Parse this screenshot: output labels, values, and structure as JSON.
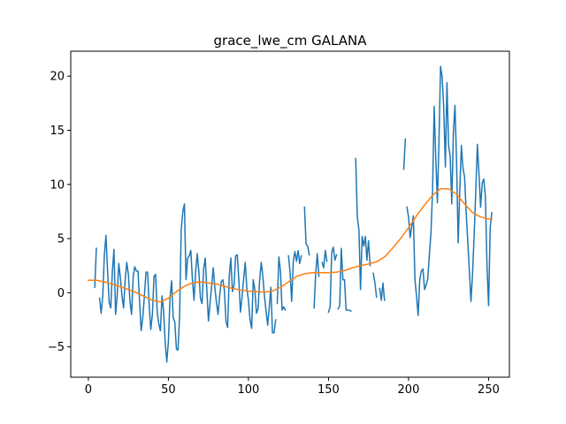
{
  "chart_data": {
    "type": "line",
    "title": "grace_lwe_cm GALANA",
    "xlabel": "",
    "ylabel": "",
    "xlim": [
      -11,
      263
    ],
    "ylim": [
      -7.8,
      22.3
    ],
    "xticks": [
      0,
      50,
      100,
      150,
      200,
      250
    ],
    "yticks": [
      -5,
      0,
      5,
      10,
      15,
      20
    ],
    "grid": false,
    "series": [
      {
        "color": "#1f77b4",
        "segments": [
          [
            [
              4,
              0.5
            ],
            [
              5,
              4.1
            ]
          ],
          [
            [
              7,
              -0.5
            ],
            [
              8,
              -1.9
            ],
            [
              9,
              -0.3
            ],
            [
              10,
              3.5
            ],
            [
              11,
              5.3
            ],
            [
              12,
              2.0
            ],
            [
              13,
              -0.9
            ],
            [
              14,
              -1.4
            ],
            [
              15,
              2.0
            ],
            [
              16,
              4.0
            ],
            [
              17,
              -2.0
            ],
            [
              18,
              -0.3
            ],
            [
              19,
              2.7
            ],
            [
              20,
              1.4
            ],
            [
              21,
              -0.3
            ],
            [
              22,
              -1.4
            ],
            [
              23,
              1.2
            ],
            [
              24,
              2.8
            ],
            [
              25,
              1.7
            ],
            [
              26,
              -0.8
            ],
            [
              27,
              -2.0
            ],
            [
              28,
              1.5
            ],
            [
              29,
              2.4
            ],
            [
              30,
              2.0
            ],
            [
              31,
              2.0
            ],
            [
              32,
              -0.8
            ],
            [
              33,
              -3.5
            ],
            [
              34,
              -2.3
            ],
            [
              35,
              -0.3
            ],
            [
              36,
              1.9
            ],
            [
              37,
              1.9
            ],
            [
              38,
              -1.2
            ],
            [
              39,
              -3.4
            ],
            [
              40,
              -2.0
            ],
            [
              41,
              1.5
            ],
            [
              42,
              1.7
            ],
            [
              43,
              -1.8
            ],
            [
              44,
              -2.9
            ],
            [
              45,
              -3.5
            ],
            [
              46,
              -0.3
            ],
            [
              47,
              -1.7
            ],
            [
              48,
              -4.6
            ],
            [
              49,
              -6.4
            ],
            [
              50,
              -4.5
            ],
            [
              51,
              -0.5
            ],
            [
              52,
              1.1
            ],
            [
              53,
              -2.3
            ],
            [
              54,
              -2.7
            ],
            [
              55,
              -5.2
            ],
            [
              56,
              -5.3
            ],
            [
              57,
              -2.1
            ],
            [
              58,
              5.8
            ],
            [
              59,
              7.5
            ],
            [
              60,
              8.2
            ],
            [
              61,
              1.2
            ],
            [
              62,
              3.2
            ],
            [
              63,
              3.4
            ],
            [
              64,
              3.9
            ],
            [
              65,
              1.2
            ],
            [
              66,
              -0.7
            ],
            [
              67,
              1.9
            ],
            [
              68,
              3.6
            ],
            [
              69,
              2.0
            ],
            [
              70,
              -0.5
            ],
            [
              71,
              -1.0
            ],
            [
              72,
              2.2
            ],
            [
              73,
              3.2
            ],
            [
              74,
              0.3
            ],
            [
              75,
              -2.6
            ],
            [
              76,
              -1.0
            ],
            [
              77,
              0.6
            ],
            [
              78,
              2.3
            ],
            [
              79,
              0.5
            ],
            [
              80,
              -0.9
            ],
            [
              81,
              -2.0
            ],
            [
              82,
              -0.3
            ],
            [
              83,
              1.0
            ],
            [
              84,
              1.2
            ],
            [
              85,
              0.2
            ],
            [
              86,
              -2.7
            ],
            [
              87,
              -3.2
            ],
            [
              88,
              1.5
            ],
            [
              89,
              3.2
            ],
            [
              90,
              0.1
            ],
            [
              91,
              0.7
            ],
            [
              92,
              3.4
            ],
            [
              93,
              3.5
            ],
            [
              94,
              1.2
            ],
            [
              95,
              -1.8
            ],
            [
              96,
              -0.4
            ],
            [
              97,
              1.3
            ],
            [
              98,
              2.8
            ],
            [
              99,
              0.4
            ],
            [
              100,
              -0.7
            ],
            [
              101,
              -2.5
            ],
            [
              102,
              -3.3
            ],
            [
              103,
              1.2
            ],
            [
              104,
              0.3
            ],
            [
              105,
              -1.9
            ],
            [
              106,
              -1.5
            ],
            [
              107,
              1.2
            ],
            [
              108,
              2.8
            ],
            [
              109,
              1.5
            ],
            [
              110,
              -0.3
            ],
            [
              111,
              -1.7
            ],
            [
              112,
              -3.0
            ],
            [
              113,
              -1.3
            ],
            [
              114,
              0.5
            ],
            [
              115,
              -3.7
            ],
            [
              116,
              -3.7
            ],
            [
              117,
              -2.5
            ]
          ],
          [
            [
              118,
              -1.0
            ],
            [
              119,
              3.3
            ],
            [
              120,
              2.0
            ],
            [
              121,
              -1.6
            ],
            [
              122,
              -1.3
            ],
            [
              123,
              -1.6
            ]
          ],
          [
            [
              125,
              3.4
            ],
            [
              126,
              1.9
            ],
            [
              127,
              -0.8
            ],
            [
              128,
              2.9
            ],
            [
              129,
              3.8
            ],
            [
              130,
              2.9
            ],
            [
              131,
              3.9
            ],
            [
              132,
              2.7
            ],
            [
              133,
              3.4
            ]
          ],
          [
            [
              135,
              7.9
            ],
            [
              136,
              4.5
            ],
            [
              137,
              4.3
            ],
            [
              138,
              3.5
            ]
          ],
          [
            [
              141,
              -1.4
            ],
            [
              142,
              1.8
            ],
            [
              143,
              3.6
            ],
            [
              144,
              1.5
            ]
          ],
          [
            [
              146,
              2.8
            ],
            [
              147,
              2.3
            ],
            [
              148,
              3.9
            ],
            [
              149,
              2.9
            ]
          ],
          [
            [
              150,
              -1.8
            ],
            [
              151,
              -1.3
            ],
            [
              152,
              3.7
            ],
            [
              153,
              4.2
            ],
            [
              154,
              3.0
            ],
            [
              155,
              3.5
            ]
          ],
          [
            [
              156,
              -1.5
            ],
            [
              157,
              -1.2
            ],
            [
              158,
              4.1
            ],
            [
              159,
              1.2
            ],
            [
              160,
              1.2
            ],
            [
              161,
              -1.6
            ],
            [
              162,
              -1.6
            ]
          ],
          [
            [
              163,
              -1.6
            ],
            [
              164,
              -1.7
            ]
          ],
          [
            [
              167,
              12.4
            ],
            [
              168,
              7.0
            ],
            [
              169,
              5.8
            ],
            [
              170,
              0.3
            ],
            [
              171,
              5.2
            ],
            [
              172,
              4.3
            ],
            [
              173,
              5.2
            ],
            [
              174,
              3.0
            ],
            [
              175,
              4.8
            ],
            [
              176,
              2.5
            ]
          ],
          [
            [
              178,
              1.8
            ],
            [
              179,
              0.9
            ],
            [
              180,
              -0.4
            ]
          ],
          [
            [
              182,
              0.4
            ],
            [
              183,
              -0.7
            ],
            [
              184,
              0.9
            ],
            [
              185,
              -0.7
            ]
          ],
          [
            [
              197,
              11.4
            ],
            [
              198,
              14.2
            ]
          ],
          [
            [
              199,
              7.9
            ],
            [
              200,
              7.0
            ],
            [
              201,
              5.1
            ],
            [
              202,
              6.1
            ],
            [
              203,
              7.1
            ],
            [
              204,
              1.2
            ],
            [
              205,
              -0.3
            ],
            [
              206,
              -2.1
            ],
            [
              207,
              1.2
            ],
            [
              208,
              2.0
            ],
            [
              209,
              2.2
            ],
            [
              210,
              0.3
            ],
            [
              211,
              0.7
            ],
            [
              212,
              1.3
            ],
            [
              213,
              3.5
            ],
            [
              214,
              5.5
            ],
            [
              215,
              9.4
            ],
            [
              216,
              17.2
            ],
            [
              217,
              12.5
            ],
            [
              218,
              8.3
            ],
            [
              219,
              14.0
            ],
            [
              220,
              20.9
            ],
            [
              221,
              19.9
            ],
            [
              222,
              17.0
            ],
            [
              223,
              11.6
            ],
            [
              224,
              19.4
            ],
            [
              225,
              13.6
            ],
            [
              226,
              12.6
            ],
            [
              227,
              8.2
            ],
            [
              228,
              14.8
            ],
            [
              229,
              17.3
            ],
            [
              230,
              12.1
            ],
            [
              231,
              4.6
            ],
            [
              232,
              9.4
            ],
            [
              233,
              13.6
            ],
            [
              234,
              11.5
            ],
            [
              235,
              10.7
            ],
            [
              236,
              7.4
            ],
            [
              237,
              4.7
            ],
            [
              238,
              2.0
            ],
            [
              239,
              -0.8
            ],
            [
              240,
              1.8
            ],
            [
              241,
              5.4
            ],
            [
              242,
              9.4
            ],
            [
              243,
              13.7
            ],
            [
              244,
              11.0
            ],
            [
              245,
              7.9
            ],
            [
              246,
              10.1
            ],
            [
              247,
              10.5
            ],
            [
              248,
              8.9
            ],
            [
              249,
              2.5
            ],
            [
              250,
              -1.2
            ],
            [
              251,
              6.0
            ],
            [
              252,
              7.4
            ]
          ]
        ]
      },
      {
        "color": "#ff7f0e",
        "points": [
          [
            0,
            1.15
          ],
          [
            5,
            1.15
          ],
          [
            10,
            1.0
          ],
          [
            15,
            0.8
          ],
          [
            20,
            0.55
          ],
          [
            25,
            0.3
          ],
          [
            30,
            0.0
          ],
          [
            35,
            -0.35
          ],
          [
            40,
            -0.7
          ],
          [
            45,
            -0.85
          ],
          [
            50,
            -0.5
          ],
          [
            55,
            0.1
          ],
          [
            60,
            0.6
          ],
          [
            65,
            0.9
          ],
          [
            70,
            1.0
          ],
          [
            75,
            0.9
          ],
          [
            80,
            0.8
          ],
          [
            85,
            0.6
          ],
          [
            90,
            0.4
          ],
          [
            95,
            0.25
          ],
          [
            100,
            0.15
          ],
          [
            105,
            0.1
          ],
          [
            110,
            0.05
          ],
          [
            115,
            0.15
          ],
          [
            120,
            0.5
          ],
          [
            125,
            1.0
          ],
          [
            130,
            1.5
          ],
          [
            135,
            1.75
          ],
          [
            140,
            1.85
          ],
          [
            145,
            1.85
          ],
          [
            150,
            1.85
          ],
          [
            155,
            1.9
          ],
          [
            160,
            2.05
          ],
          [
            165,
            2.3
          ],
          [
            170,
            2.5
          ],
          [
            175,
            2.65
          ],
          [
            180,
            2.85
          ],
          [
            185,
            3.3
          ],
          [
            190,
            4.1
          ],
          [
            195,
            5.0
          ],
          [
            200,
            6.0
          ],
          [
            205,
            7.1
          ],
          [
            210,
            8.1
          ],
          [
            215,
            9.0
          ],
          [
            220,
            9.6
          ],
          [
            225,
            9.6
          ],
          [
            230,
            9.1
          ],
          [
            235,
            8.2
          ],
          [
            240,
            7.4
          ],
          [
            245,
            7.0
          ],
          [
            250,
            6.8
          ],
          [
            252,
            6.8
          ]
        ]
      }
    ]
  }
}
